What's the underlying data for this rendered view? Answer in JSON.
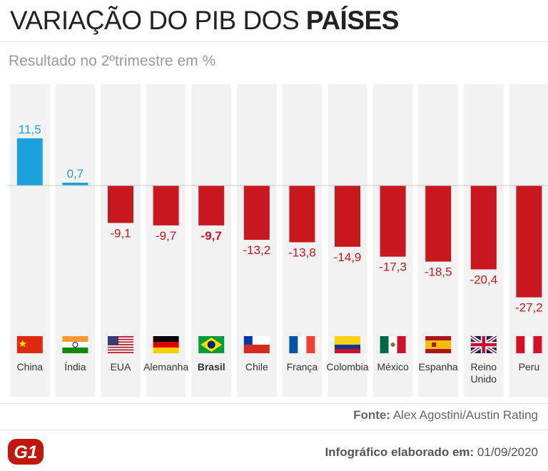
{
  "header": {
    "title_prefix": "VARIAÇÃO DO PIB DOS ",
    "title_bold": "PAÍSES",
    "subtitle": "Resultado no 2ºtrimestre em %"
  },
  "chart_data": {
    "type": "bar",
    "categories": [
      "China",
      "Índia",
      "EUA",
      "Alemanha",
      "Brasil",
      "Chile",
      "França",
      "Colombia",
      "México",
      "Espanha",
      "Reino Unido",
      "Peru"
    ],
    "category_lines": [
      [
        "China"
      ],
      [
        "Índia"
      ],
      [
        "EUA"
      ],
      [
        "Alemanha"
      ],
      [
        "Brasil"
      ],
      [
        "Chile"
      ],
      [
        "França"
      ],
      [
        "Colombia"
      ],
      [
        "México"
      ],
      [
        "Espanha"
      ],
      [
        "Reino",
        "Unido"
      ],
      [
        "Peru"
      ]
    ],
    "values": [
      11.5,
      0.7,
      -9.1,
      -9.7,
      -9.7,
      -13.2,
      -13.8,
      -14.9,
      -17.3,
      -18.5,
      -20.4,
      -27.2
    ],
    "value_labels": [
      "11,5",
      "0,7",
      "-9,1",
      "-9,7",
      "-9,7",
      "-13,2",
      "-13,8",
      "-14,9",
      "-17,3",
      "-18,5",
      "-20,4",
      "-27,2"
    ],
    "highlight": "Brasil",
    "flag_icons": [
      "china-flag-icon",
      "india-flag-icon",
      "usa-flag-icon",
      "germany-flag-icon",
      "brazil-flag-icon",
      "chile-flag-icon",
      "france-flag-icon",
      "colombia-flag-icon",
      "mexico-flag-icon",
      "spain-flag-icon",
      "uk-flag-icon",
      "peru-flag-icon"
    ],
    "colors": {
      "positive": "#1ba2dc",
      "negative": "#c8171e",
      "column_bg": "#f2f2f2"
    }
  },
  "footer": {
    "source_label": "Fonte:",
    "source_text": " Alex Agostini/Austin Rating",
    "credit_label": "Infográfico elaborado em:",
    "credit_date": " 01/09/2020"
  },
  "logo": {
    "text": "G1",
    "color": "#c4170c"
  }
}
